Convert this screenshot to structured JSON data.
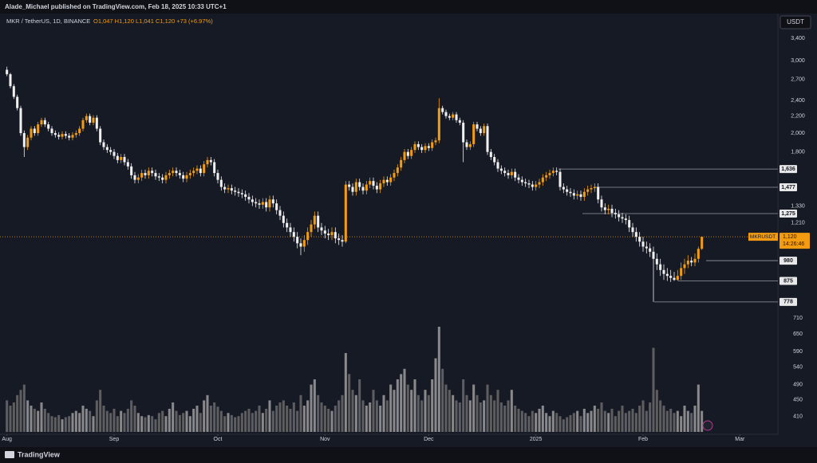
{
  "chart_data": {
    "type": "candlestick",
    "publisher_text": "Alade_Michael published on TradingView.com, Feb 18, 2025 10:33 UTC+1",
    "legend": {
      "symbol": "MKR / TetherUS, 1D, BINANCE",
      "ohlc": "O1,047 H1,120 L1,041 C1,120 +73 (+6.97%)"
    },
    "currency_button": "USDT",
    "footer": "TradingView",
    "log_scale": true,
    "grid": false,
    "up_color": "#f39c12",
    "down_color": "#f0f0f0",
    "ylim": [
      371,
      3886
    ],
    "xlim": [
      -2,
      223
    ],
    "yticks": [
      {
        "value": 3400,
        "label": "3,400"
      },
      {
        "value": 3000,
        "label": "3,000"
      },
      {
        "value": 2700,
        "label": "2,700"
      },
      {
        "value": 2400,
        "label": "2,400"
      },
      {
        "value": 2200,
        "label": "2,200"
      },
      {
        "value": 2000,
        "label": "2,000"
      },
      {
        "value": 1800,
        "label": "1,800"
      },
      {
        "value": 1330,
        "label": "1,330"
      },
      {
        "value": 1210,
        "label": "1,210"
      },
      710,
      650,
      590,
      540,
      490,
      450,
      410
    ],
    "xticks": [
      {
        "value": 0,
        "label": "Aug"
      },
      {
        "value": 31,
        "label": "Sep"
      },
      {
        "value": 61,
        "label": "Oct"
      },
      {
        "value": 92,
        "label": "Nov"
      },
      {
        "value": 122,
        "label": "Dec"
      },
      {
        "value": 153,
        "label": "2025"
      },
      {
        "value": 184,
        "label": "Feb"
      },
      {
        "value": 212,
        "label": "Mar"
      }
    ],
    "levels": [
      {
        "value": 1636,
        "label": "1,636"
      },
      {
        "value": 1477,
        "label": "1,477"
      },
      {
        "value": 1275,
        "label": "1,275"
      },
      {
        "value": 980,
        "label": "980"
      },
      {
        "value": 875,
        "label": "875"
      },
      {
        "value": 778,
        "label": "778"
      }
    ],
    "price_tag": {
      "symbol": "MKRUSDT",
      "price": {
        "value": 1120,
        "label": "1,120"
      },
      "countdown": "14:26:46"
    },
    "ohlc": [
      [
        2850,
        2900,
        2750,
        2780
      ],
      [
        2780,
        2800,
        2570,
        2600
      ],
      [
        2600,
        2630,
        2420,
        2450
      ],
      [
        2450,
        2480,
        2270,
        2300
      ],
      [
        2300,
        2330,
        1970,
        2000
      ],
      [
        2000,
        2030,
        1750,
        1850
      ],
      [
        1850,
        1980,
        1820,
        1950
      ],
      [
        1950,
        2080,
        1920,
        2050
      ],
      [
        2050,
        2080,
        1970,
        2000
      ],
      [
        2000,
        2130,
        1970,
        2100
      ],
      [
        2100,
        2180,
        2070,
        2150
      ],
      [
        2150,
        2180,
        2070,
        2100
      ],
      [
        2100,
        2130,
        2020,
        2050
      ],
      [
        2050,
        2080,
        1970,
        2000
      ],
      [
        2000,
        2030,
        1950,
        1980
      ],
      [
        1980,
        2010,
        1930,
        1960
      ],
      [
        1960,
        2020,
        1930,
        1990
      ],
      [
        1990,
        2020,
        1940,
        1970
      ],
      [
        1970,
        2000,
        1920,
        1950
      ],
      [
        1950,
        2010,
        1920,
        1980
      ],
      [
        1980,
        2030,
        1950,
        2000
      ],
      [
        2000,
        2080,
        1970,
        2050
      ],
      [
        2050,
        2180,
        2020,
        2150
      ],
      [
        2150,
        2230,
        2120,
        2200
      ],
      [
        2200,
        2230,
        2090,
        2120
      ],
      [
        2120,
        2210,
        2090,
        2180
      ],
      [
        2180,
        2210,
        2020,
        2050
      ],
      [
        2050,
        2080,
        1870,
        1900
      ],
      [
        1900,
        1930,
        1820,
        1850
      ],
      [
        1850,
        1880,
        1790,
        1820
      ],
      [
        1820,
        1850,
        1770,
        1800
      ],
      [
        1800,
        1830,
        1730,
        1760
      ],
      [
        1760,
        1790,
        1690,
        1720
      ],
      [
        1720,
        1780,
        1690,
        1750
      ],
      [
        1750,
        1780,
        1670,
        1700
      ],
      [
        1700,
        1730,
        1630,
        1660
      ],
      [
        1660,
        1690,
        1550,
        1580
      ],
      [
        1580,
        1610,
        1510,
        1540
      ],
      [
        1540,
        1590,
        1510,
        1560
      ],
      [
        1560,
        1630,
        1530,
        1600
      ],
      [
        1600,
        1630,
        1550,
        1580
      ],
      [
        1580,
        1650,
        1550,
        1620
      ],
      [
        1620,
        1650,
        1570,
        1600
      ],
      [
        1600,
        1630,
        1540,
        1570
      ],
      [
        1570,
        1600,
        1530,
        1560
      ],
      [
        1560,
        1590,
        1510,
        1540
      ],
      [
        1540,
        1610,
        1510,
        1580
      ],
      [
        1580,
        1630,
        1550,
        1600
      ],
      [
        1600,
        1650,
        1570,
        1620
      ],
      [
        1620,
        1650,
        1570,
        1600
      ],
      [
        1600,
        1630,
        1550,
        1580
      ],
      [
        1580,
        1610,
        1520,
        1550
      ],
      [
        1550,
        1610,
        1520,
        1580
      ],
      [
        1580,
        1630,
        1550,
        1600
      ],
      [
        1600,
        1650,
        1570,
        1620
      ],
      [
        1620,
        1670,
        1590,
        1640
      ],
      [
        1640,
        1670,
        1570,
        1600
      ],
      [
        1600,
        1710,
        1570,
        1680
      ],
      [
        1680,
        1750,
        1650,
        1720
      ],
      [
        1720,
        1750,
        1670,
        1700
      ],
      [
        1700,
        1730,
        1570,
        1600
      ],
      [
        1600,
        1630,
        1510,
        1540
      ],
      [
        1540,
        1570,
        1450,
        1480
      ],
      [
        1480,
        1510,
        1430,
        1460
      ],
      [
        1460,
        1500,
        1430,
        1470
      ],
      [
        1470,
        1500,
        1420,
        1450
      ],
      [
        1450,
        1480,
        1410,
        1440
      ],
      [
        1440,
        1470,
        1400,
        1430
      ],
      [
        1430,
        1460,
        1390,
        1420
      ],
      [
        1420,
        1450,
        1370,
        1400
      ],
      [
        1400,
        1430,
        1350,
        1380
      ],
      [
        1380,
        1410,
        1330,
        1360
      ],
      [
        1360,
        1390,
        1320,
        1350
      ],
      [
        1350,
        1380,
        1310,
        1340
      ],
      [
        1340,
        1390,
        1310,
        1360
      ],
      [
        1360,
        1390,
        1290,
        1320
      ],
      [
        1320,
        1410,
        1290,
        1380
      ],
      [
        1380,
        1410,
        1320,
        1350
      ],
      [
        1350,
        1380,
        1270,
        1300
      ],
      [
        1300,
        1330,
        1230,
        1260
      ],
      [
        1260,
        1290,
        1180,
        1210
      ],
      [
        1210,
        1240,
        1150,
        1180
      ],
      [
        1180,
        1210,
        1120,
        1150
      ],
      [
        1150,
        1180,
        1090,
        1120
      ],
      [
        1120,
        1150,
        1050,
        1080
      ],
      [
        1080,
        1110,
        1010,
        1060
      ],
      [
        1060,
        1130,
        1030,
        1100
      ],
      [
        1100,
        1180,
        1070,
        1150
      ],
      [
        1150,
        1230,
        1120,
        1200
      ],
      [
        1200,
        1290,
        1170,
        1260
      ],
      [
        1260,
        1290,
        1150,
        1180
      ],
      [
        1180,
        1210,
        1130,
        1160
      ],
      [
        1160,
        1190,
        1110,
        1140
      ],
      [
        1140,
        1170,
        1100,
        1130
      ],
      [
        1130,
        1180,
        1100,
        1150
      ],
      [
        1150,
        1180,
        1080,
        1110
      ],
      [
        1110,
        1140,
        1070,
        1100
      ],
      [
        1100,
        1130,
        1060,
        1090
      ],
      [
        1090,
        1530,
        1080,
        1500
      ],
      [
        1500,
        1530,
        1450,
        1480
      ],
      [
        1480,
        1510,
        1410,
        1440
      ],
      [
        1440,
        1550,
        1410,
        1520
      ],
      [
        1520,
        1550,
        1450,
        1480
      ],
      [
        1480,
        1510,
        1420,
        1450
      ],
      [
        1450,
        1530,
        1420,
        1500
      ],
      [
        1500,
        1560,
        1470,
        1530
      ],
      [
        1530,
        1560,
        1460,
        1490
      ],
      [
        1490,
        1520,
        1430,
        1460
      ],
      [
        1460,
        1540,
        1430,
        1510
      ],
      [
        1510,
        1570,
        1480,
        1540
      ],
      [
        1540,
        1570,
        1490,
        1520
      ],
      [
        1520,
        1590,
        1490,
        1560
      ],
      [
        1560,
        1630,
        1530,
        1600
      ],
      [
        1600,
        1680,
        1570,
        1650
      ],
      [
        1650,
        1750,
        1620,
        1720
      ],
      [
        1720,
        1830,
        1690,
        1800
      ],
      [
        1800,
        1830,
        1730,
        1760
      ],
      [
        1760,
        1850,
        1730,
        1820
      ],
      [
        1820,
        1910,
        1790,
        1880
      ],
      [
        1880,
        1910,
        1820,
        1850
      ],
      [
        1850,
        1880,
        1790,
        1820
      ],
      [
        1820,
        1890,
        1790,
        1860
      ],
      [
        1860,
        1890,
        1810,
        1840
      ],
      [
        1840,
        1930,
        1810,
        1900
      ],
      [
        1900,
        1950,
        1870,
        1920
      ],
      [
        1920,
        2430,
        1890,
        2300
      ],
      [
        2300,
        2330,
        2220,
        2250
      ],
      [
        2250,
        2280,
        2170,
        2200
      ],
      [
        2200,
        2230,
        2150,
        2180
      ],
      [
        2180,
        2250,
        2150,
        2220
      ],
      [
        2220,
        2250,
        2120,
        2150
      ],
      [
        2150,
        2180,
        2090,
        2120
      ],
      [
        2120,
        2150,
        1700,
        1900
      ],
      [
        1900,
        1930,
        1820,
        1850
      ],
      [
        1850,
        1910,
        1820,
        1880
      ],
      [
        1880,
        2130,
        1850,
        2100
      ],
      [
        2100,
        2130,
        2020,
        2050
      ],
      [
        2050,
        2080,
        1970,
        2000
      ],
      [
        2000,
        2110,
        1970,
        2080
      ],
      [
        2080,
        2110,
        1770,
        1800
      ],
      [
        1800,
        1830,
        1720,
        1750
      ],
      [
        1750,
        1780,
        1670,
        1700
      ],
      [
        1700,
        1730,
        1610,
        1640
      ],
      [
        1640,
        1670,
        1590,
        1620
      ],
      [
        1620,
        1650,
        1570,
        1600
      ],
      [
        1600,
        1630,
        1550,
        1580
      ],
      [
        1580,
        1640,
        1550,
        1610
      ],
      [
        1610,
        1640,
        1530,
        1560
      ],
      [
        1560,
        1590,
        1510,
        1540
      ],
      [
        1540,
        1570,
        1490,
        1520
      ],
      [
        1520,
        1550,
        1480,
        1510
      ],
      [
        1510,
        1540,
        1470,
        1500
      ],
      [
        1500,
        1530,
        1450,
        1480
      ],
      [
        1480,
        1530,
        1450,
        1500
      ],
      [
        1500,
        1550,
        1470,
        1520
      ],
      [
        1520,
        1590,
        1490,
        1560
      ],
      [
        1560,
        1610,
        1530,
        1580
      ],
      [
        1580,
        1630,
        1550,
        1600
      ],
      [
        1600,
        1650,
        1570,
        1620
      ],
      [
        1620,
        1650,
        1580,
        1610
      ],
      [
        1610,
        1640,
        1450,
        1480
      ],
      [
        1480,
        1510,
        1430,
        1460
      ],
      [
        1460,
        1490,
        1410,
        1440
      ],
      [
        1440,
        1470,
        1400,
        1430
      ],
      [
        1430,
        1460,
        1380,
        1410
      ],
      [
        1410,
        1450,
        1380,
        1420
      ],
      [
        1420,
        1450,
        1370,
        1400
      ],
      [
        1400,
        1470,
        1370,
        1440
      ],
      [
        1440,
        1490,
        1410,
        1460
      ],
      [
        1460,
        1500,
        1430,
        1470
      ],
      [
        1470,
        1510,
        1440,
        1480
      ],
      [
        1480,
        1510,
        1350,
        1380
      ],
      [
        1380,
        1410,
        1290,
        1320
      ],
      [
        1320,
        1350,
        1270,
        1300
      ],
      [
        1300,
        1340,
        1270,
        1310
      ],
      [
        1310,
        1340,
        1250,
        1280
      ],
      [
        1280,
        1310,
        1240,
        1270
      ],
      [
        1270,
        1300,
        1220,
        1250
      ],
      [
        1250,
        1280,
        1210,
        1240
      ],
      [
        1240,
        1270,
        1200,
        1230
      ],
      [
        1230,
        1260,
        1150,
        1180
      ],
      [
        1180,
        1210,
        1120,
        1150
      ],
      [
        1150,
        1180,
        1090,
        1120
      ],
      [
        1120,
        1150,
        1060,
        1090
      ],
      [
        1090,
        1120,
        1030,
        1060
      ],
      [
        1060,
        1090,
        1020,
        1050
      ],
      [
        1050,
        1080,
        1000,
        1030
      ],
      [
        1030,
        1060,
        778,
        990
      ],
      [
        990,
        1020,
        930,
        960
      ],
      [
        960,
        990,
        900,
        930
      ],
      [
        930,
        960,
        880,
        910
      ],
      [
        910,
        940,
        875,
        900
      ],
      [
        900,
        930,
        870,
        890
      ],
      [
        890,
        920,
        875,
        880
      ],
      [
        880,
        930,
        875,
        900
      ],
      [
        900,
        970,
        880,
        940
      ],
      [
        940,
        990,
        910,
        960
      ],
      [
        960,
        1010,
        940,
        980
      ],
      [
        980,
        1000,
        950,
        970
      ],
      [
        970,
        1020,
        950,
        990
      ],
      [
        990,
        1060,
        970,
        1047
      ],
      [
        1047,
        1120,
        1041,
        1120
      ]
    ],
    "volume": [
      30,
      25,
      28,
      35,
      40,
      45,
      30,
      25,
      22,
      20,
      28,
      22,
      18,
      15,
      14,
      16,
      12,
      14,
      15,
      18,
      20,
      18,
      25,
      22,
      20,
      15,
      30,
      40,
      25,
      20,
      18,
      22,
      15,
      20,
      18,
      22,
      30,
      25,
      18,
      15,
      14,
      16,
      15,
      12,
      18,
      20,
      15,
      22,
      28,
      20,
      16,
      18,
      20,
      15,
      22,
      25,
      18,
      30,
      35,
      25,
      28,
      24,
      20,
      15,
      18,
      16,
      14,
      15,
      18,
      20,
      22,
      18,
      20,
      25,
      18,
      22,
      30,
      20,
      25,
      28,
      30,
      25,
      22,
      28,
      20,
      35,
      25,
      30,
      45,
      50,
      35,
      28,
      25,
      22,
      20,
      25,
      30,
      35,
      75,
      55,
      40,
      35,
      50,
      30,
      25,
      28,
      40,
      30,
      25,
      35,
      30,
      45,
      40,
      50,
      55,
      60,
      45,
      40,
      50,
      35,
      30,
      40,
      35,
      50,
      70,
      100,
      60,
      45,
      40,
      35,
      30,
      28,
      50,
      35,
      30,
      45,
      35,
      28,
      30,
      45,
      35,
      30,
      40,
      28,
      25,
      30,
      40,
      25,
      22,
      20,
      18,
      15,
      20,
      18,
      22,
      25,
      18,
      15,
      20,
      18,
      15,
      12,
      14,
      16,
      18,
      20,
      15,
      22,
      18,
      20,
      25,
      22,
      28,
      20,
      18,
      22,
      15,
      20,
      25,
      18,
      20,
      22,
      18,
      25,
      30,
      20,
      28,
      80,
      40,
      30,
      25,
      20,
      22,
      18,
      20,
      15,
      25,
      20,
      18,
      25,
      45,
      20
    ]
  }
}
